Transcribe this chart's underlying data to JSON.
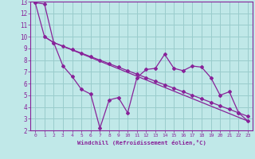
{
  "xlabel": "Windchill (Refroidissement éolien,°C)",
  "xlim": [
    -0.5,
    23.5
  ],
  "ylim": [
    2,
    13
  ],
  "xticks": [
    0,
    1,
    2,
    3,
    4,
    5,
    6,
    7,
    8,
    9,
    10,
    11,
    12,
    13,
    14,
    15,
    16,
    17,
    18,
    19,
    20,
    21,
    22,
    23
  ],
  "yticks": [
    2,
    3,
    4,
    5,
    6,
    7,
    8,
    9,
    10,
    11,
    12,
    13
  ],
  "background_color": "#c0e8e8",
  "grid_color": "#99cccc",
  "line_color": "#882299",
  "line1_x": [
    0,
    1,
    2,
    3,
    4,
    5,
    6,
    7,
    8,
    9,
    10,
    11,
    12,
    13,
    14,
    15,
    16,
    17,
    18,
    19,
    20,
    21,
    22,
    23
  ],
  "line1_y": [
    12.9,
    12.8,
    9.5,
    7.5,
    6.6,
    5.5,
    5.1,
    2.2,
    4.6,
    4.8,
    3.5,
    6.5,
    7.2,
    7.3,
    8.5,
    7.3,
    7.1,
    7.5,
    7.4,
    6.5,
    5.0,
    5.3,
    3.5,
    2.8
  ],
  "line2_x": [
    1,
    2,
    23
  ],
  "line2_y": [
    10.0,
    9.5,
    2.8
  ],
  "line3_x": [
    0,
    1,
    2,
    3,
    4,
    5,
    6,
    7,
    8,
    9,
    10,
    11,
    12,
    13,
    14,
    15,
    16,
    17,
    18,
    19,
    20,
    21,
    22,
    23
  ],
  "line3_y": [
    12.9,
    10.0,
    9.5,
    9.2,
    8.9,
    8.6,
    8.3,
    8.0,
    7.7,
    7.4,
    7.1,
    6.8,
    6.5,
    6.2,
    5.9,
    5.6,
    5.3,
    5.0,
    4.7,
    4.4,
    4.1,
    3.8,
    3.5,
    3.2
  ]
}
